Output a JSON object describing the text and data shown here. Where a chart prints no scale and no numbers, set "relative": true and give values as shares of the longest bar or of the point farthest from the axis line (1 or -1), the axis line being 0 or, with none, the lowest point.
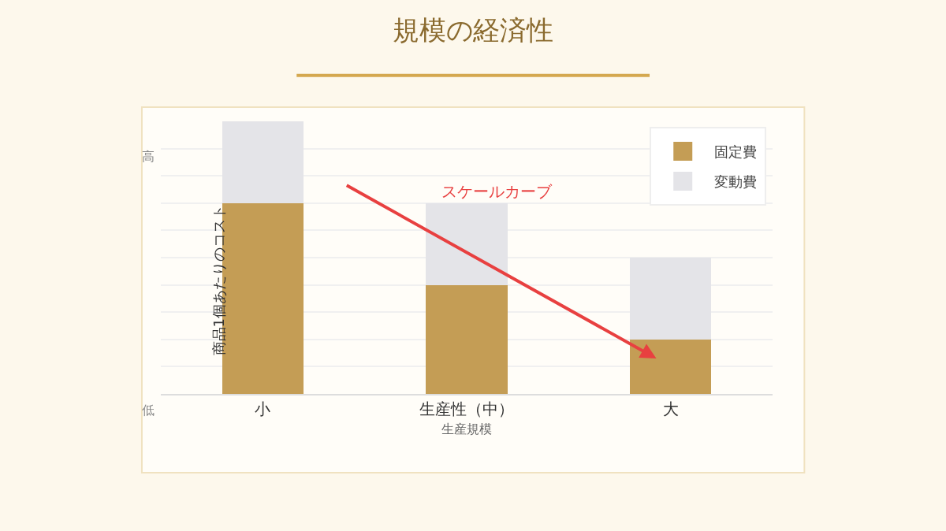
{
  "chart_data": {
    "type": "bar",
    "title": "規模の経済性",
    "xlabel": "生産規模",
    "ylabel": "商品1個あたりのコスト",
    "categories": [
      "小",
      "生産性（中）",
      "大"
    ],
    "stacked": true,
    "relative": true,
    "grid": "y",
    "legend": "top right",
    "series": [
      {
        "name": "固定費",
        "color": "#c49d55",
        "values": [
          0.7,
          0.4,
          0.2
        ]
      },
      {
        "name": "変動費",
        "color": "#e4e4e8",
        "values": [
          0.3,
          0.3,
          0.3
        ]
      }
    ],
    "annotations": [
      "高",
      "低",
      "スケールカーブ"
    ]
  }
}
